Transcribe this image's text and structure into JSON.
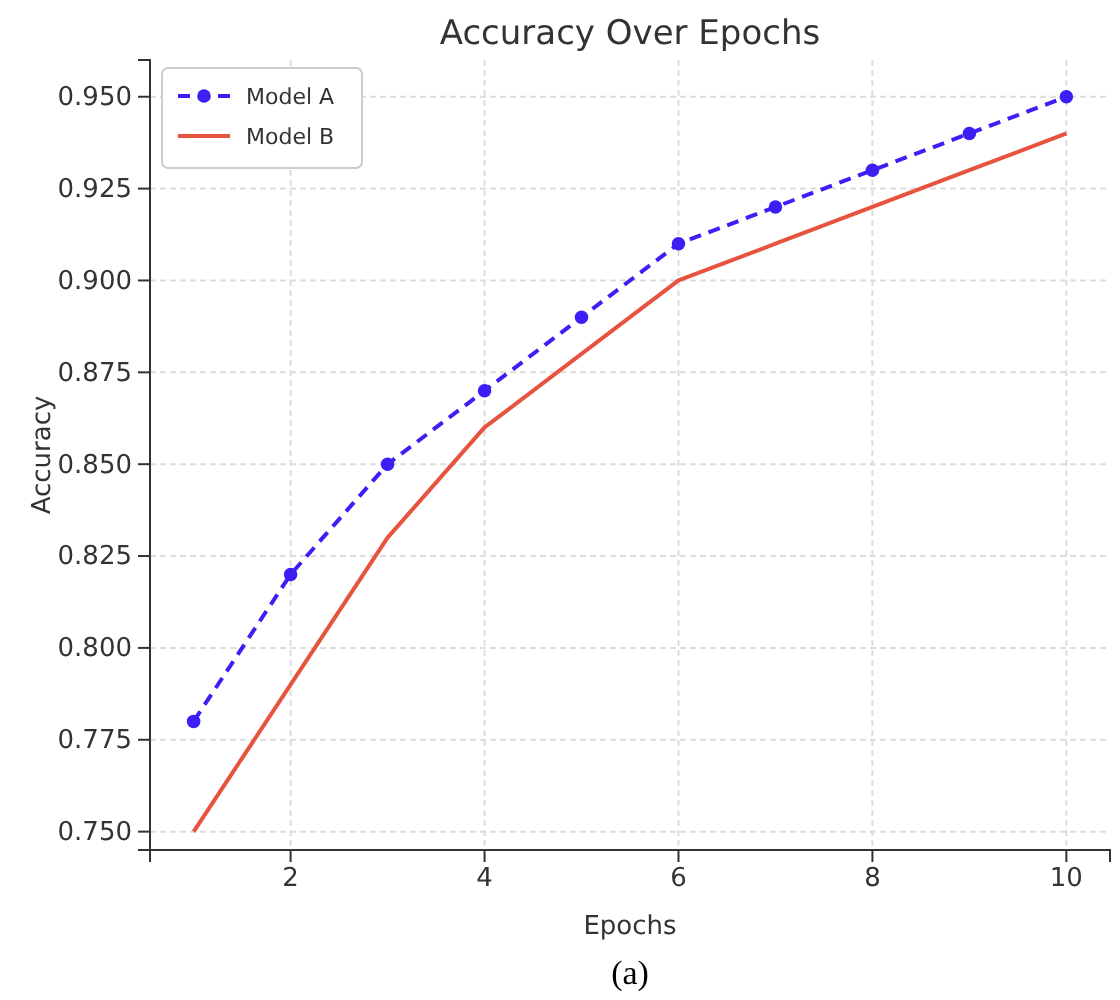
{
  "chart_data": {
    "type": "line",
    "title": "Accuracy Over Epochs",
    "xlabel": "Epochs",
    "ylabel": "Accuracy",
    "x": [
      1,
      2,
      3,
      4,
      5,
      6,
      7,
      8,
      9,
      10
    ],
    "series": [
      {
        "name": "Model A",
        "color": "#3b1ff5",
        "marker": "circle",
        "line_style": "dashed",
        "values": [
          0.78,
          0.82,
          0.85,
          0.87,
          0.89,
          0.91,
          0.92,
          0.93,
          0.94,
          0.95
        ]
      },
      {
        "name": "Model B",
        "color": "#e8533f",
        "marker": "none",
        "line_style": "solid",
        "values": [
          0.75,
          0.79,
          0.83,
          0.86,
          0.88,
          0.9,
          0.91,
          0.92,
          0.93,
          0.94
        ]
      }
    ],
    "xlim": [
      0.55,
      10.45
    ],
    "xticks": [
      2,
      4,
      6,
      8,
      10
    ],
    "ylim": [
      0.745,
      0.96
    ],
    "yticks": [
      {
        "value": 0.75,
        "label": "0.750"
      },
      {
        "value": 0.775,
        "label": "0.775"
      },
      {
        "value": 0.8,
        "label": "0.800"
      },
      {
        "value": 0.825,
        "label": "0.825"
      },
      {
        "value": 0.85,
        "label": "0.850"
      },
      {
        "value": 0.875,
        "label": "0.875"
      },
      {
        "value": 0.9,
        "label": "0.900"
      },
      {
        "value": 0.925,
        "label": "0.925"
      },
      {
        "value": 0.95,
        "label": "0.950"
      }
    ],
    "grid": true,
    "legend": "top left",
    "annotations": [
      "(a)"
    ]
  }
}
